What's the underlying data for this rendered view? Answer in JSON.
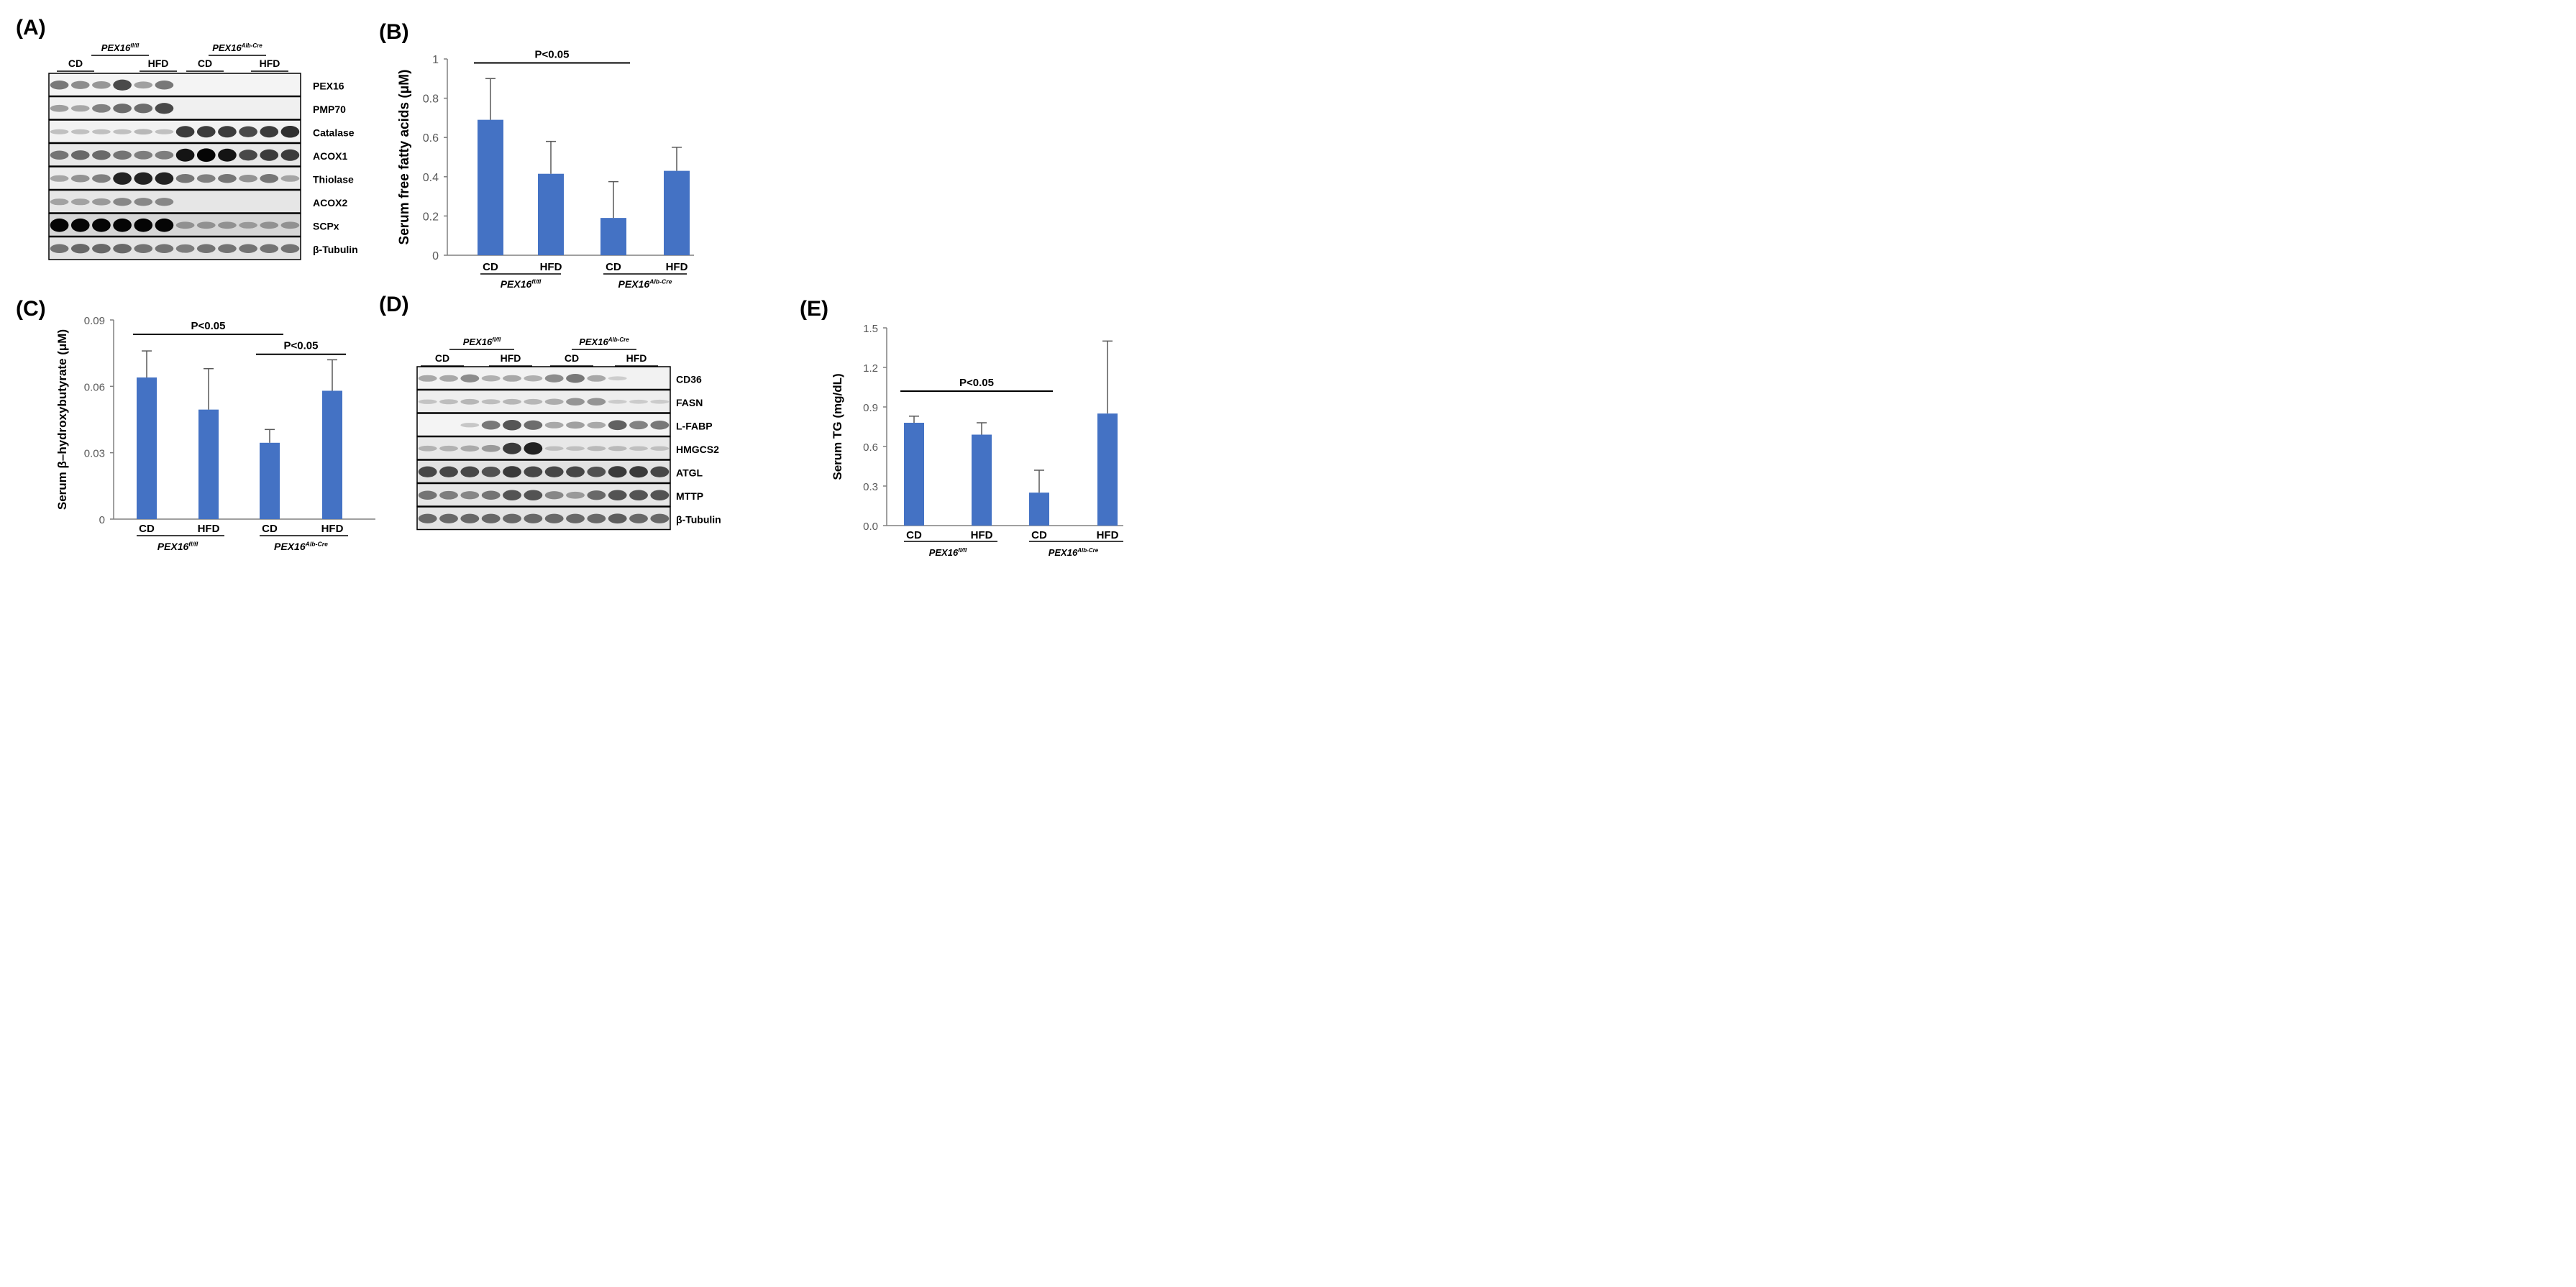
{
  "panels": {
    "A": {
      "label": "(A)",
      "groups": [
        {
          "name": "PEX16",
          "sup": "fl/fl",
          "subs": [
            "CD",
            "HFD"
          ]
        },
        {
          "name": "PEX16",
          "sup": "Alb-Cre",
          "subs": [
            "CD",
            "HFD"
          ]
        }
      ],
      "bands": [
        "PEX16",
        "PMP70",
        "Catalase",
        "ACOX1",
        "Thiolase",
        "ACOX2",
        "SCPx",
        "β-Tubulin"
      ]
    },
    "B": {
      "label": "(B)"
    },
    "C": {
      "label": "(C)"
    },
    "D": {
      "label": "(D)",
      "groups": [
        {
          "name": "PEX16",
          "sup": "fl/fl",
          "subs": [
            "CD",
            "HFD"
          ]
        },
        {
          "name": "PEX16",
          "sup": "Alb-Cre",
          "subs": [
            "CD",
            "HFD"
          ]
        }
      ],
      "bands": [
        "CD36",
        "FASN",
        "L-FABP",
        "HMGCS2",
        "ATGL",
        "MTTP",
        "β-Tubulin"
      ]
    },
    "E": {
      "label": "(E)"
    }
  },
  "colors": {
    "bar": "#4472C4",
    "axis": "#808080",
    "error": "#595959",
    "text": "#000000",
    "tick": "#595959"
  },
  "chart_data": [
    {
      "panel": "B",
      "type": "bar",
      "categories": [
        "CD",
        "HFD",
        "CD",
        "HFD"
      ],
      "values": [
        0.69,
        0.415,
        0.19,
        0.43
      ],
      "errors": [
        0.21,
        0.165,
        0.185,
        0.12
      ],
      "ylabel": "Serum free fatty acids (μM)",
      "ylim": [
        0,
        1
      ],
      "yticks": [
        "0",
        "0.2",
        "0.4",
        "0.6",
        "0.8",
        "1"
      ],
      "ytick_values": [
        0,
        0.2,
        0.4,
        0.6,
        0.8,
        1
      ],
      "group_labels": [
        {
          "name": "PEX16",
          "sup": "fl/fl"
        },
        {
          "name": "PEX16",
          "sup": "Alb-Cre"
        }
      ],
      "annotations": [
        {
          "text": "P<0.05",
          "from": 0,
          "to": 2,
          "level": 0.98
        }
      ]
    },
    {
      "panel": "C",
      "type": "bar",
      "categories": [
        "CD",
        "HFD",
        "CD",
        "HFD"
      ],
      "values": [
        0.064,
        0.0495,
        0.0345,
        0.058
      ],
      "errors": [
        0.012,
        0.0185,
        0.006,
        0.014
      ],
      "ylabel": "Serum β–hydroxybutyrate (μM)",
      "ylim": [
        0,
        0.09
      ],
      "yticks": [
        "0",
        "0.03",
        "0.06",
        "0.09"
      ],
      "ytick_values": [
        0,
        0.03,
        0.06,
        0.09
      ],
      "group_labels": [
        {
          "name": "PEX16",
          "sup": "fl/fl"
        },
        {
          "name": "PEX16",
          "sup": "Alb-Cre"
        }
      ],
      "annotations": [
        {
          "text": "P<0.05",
          "from": 0,
          "to": 2,
          "level": 0.0835
        },
        {
          "text": "P<0.05",
          "from": 2,
          "to": 3,
          "level": 0.0745
        }
      ]
    },
    {
      "panel": "E",
      "type": "bar",
      "categories": [
        "CD",
        "HFD",
        "CD",
        "HFD"
      ],
      "values": [
        0.78,
        0.69,
        0.25,
        0.85
      ],
      "errors": [
        0.05,
        0.09,
        0.17,
        0.55
      ],
      "ylabel": "Serum TG (mg/dL)",
      "ylim": [
        0,
        1.5
      ],
      "yticks": [
        "0.0",
        "0.3",
        "0.6",
        "0.9",
        "1.2",
        "1.5"
      ],
      "ytick_values": [
        0,
        0.3,
        0.6,
        0.9,
        1.2,
        1.5
      ],
      "group_labels": [
        {
          "name": "PEX16",
          "sup": "fl/fl"
        },
        {
          "name": "PEX16",
          "sup": "Alb-Cre"
        }
      ],
      "annotations": [
        {
          "text": "P<0.05",
          "from": 0,
          "to": 2,
          "level": 1.02
        }
      ]
    }
  ]
}
